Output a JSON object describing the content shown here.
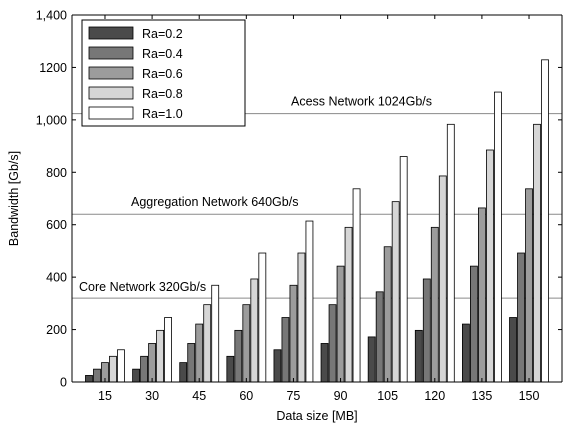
{
  "chart_data": {
    "type": "bar",
    "xlabel": "Data size [MB]",
    "ylabel": "Bandwidth [Gb/s]",
    "ylim": [
      0,
      1400
    ],
    "yticks": [
      "0",
      "200",
      "400",
      "600",
      "800",
      "1,000",
      "1200",
      "1,400"
    ],
    "ytick_values": [
      0,
      200,
      400,
      600,
      800,
      1000,
      1200,
      1400
    ],
    "categories": [
      "15",
      "30",
      "45",
      "60",
      "75",
      "90",
      "105",
      "120",
      "135",
      "150"
    ],
    "series": [
      {
        "name": "Ra=0.2",
        "color": "#4a4a4a",
        "values": [
          25,
          49,
          74,
          98,
          123,
          147,
          172,
          197,
          221,
          246
        ]
      },
      {
        "name": "Ra=0.4",
        "color": "#777777",
        "values": [
          49,
          98,
          147,
          197,
          246,
          295,
          344,
          393,
          442,
          492
        ]
      },
      {
        "name": "Ra=0.6",
        "color": "#9c9c9c",
        "values": [
          74,
          147,
          221,
          295,
          369,
          442,
          516,
          590,
          664,
          737
        ]
      },
      {
        "name": "Ra=0.8",
        "color": "#d6d6d6",
        "values": [
          98,
          197,
          295,
          393,
          492,
          590,
          688,
          786,
          885,
          983
        ]
      },
      {
        "name": "Ra=1.0",
        "color": "#ffffff",
        "values": [
          123,
          246,
          369,
          492,
          614,
          737,
          860,
          983,
          1106,
          1229
        ]
      }
    ],
    "reference_lines": [
      {
        "label": "Core Network 320Gb/s",
        "value": 320
      },
      {
        "label": "Aggregation Network 640Gb/s",
        "value": 640
      },
      {
        "label": "Acess Network 1024Gb/s",
        "value": 1024
      }
    ],
    "legend_position": "top-left",
    "grid": false
  }
}
